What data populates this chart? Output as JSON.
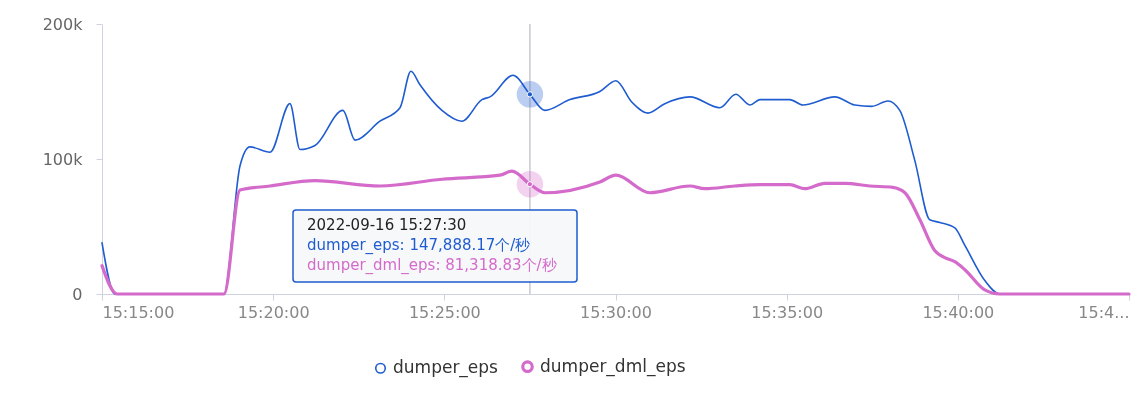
{
  "chart_data": {
    "type": "line",
    "xlim": [
      15.25,
      15.75
    ],
    "xticks": [
      {
        "value": 15.25,
        "label": "15:15:00"
      },
      {
        "value": 15.333333,
        "label": "15:20:00"
      },
      {
        "value": 15.416667,
        "label": "15:25:00"
      },
      {
        "value": 15.5,
        "label": "15:30:00"
      },
      {
        "value": 15.583333,
        "label": "15:35:00"
      },
      {
        "value": 15.666667,
        "label": "15:40:00"
      },
      {
        "value": 15.75,
        "label": "15:4..."
      }
    ],
    "ylim": [
      0,
      200000
    ],
    "yticks": [
      0,
      {
        "value": 100000,
        "label": "100k"
      },
      {
        "value": 200000,
        "label": "200k"
      }
    ],
    "legend": "bottom",
    "marker": "none",
    "series": [
      {
        "name": "dumper_eps",
        "color": "#1f5cd0",
        "x": [
          15.25,
          15.2563,
          15.3094,
          15.3172,
          15.322,
          15.3318,
          15.3415,
          15.3464,
          15.3537,
          15.3673,
          15.3732,
          15.3853,
          15.3951,
          15.4004,
          15.4048,
          15.4155,
          15.4252,
          15.435,
          15.4389,
          15.4501,
          15.458333,
          15.4656,
          15.4778,
          15.4924,
          15.5002,
          15.508,
          15.5158,
          15.524,
          15.5362,
          15.5508,
          15.5586,
          15.5654,
          15.5703,
          15.5849,
          15.5912,
          15.6068,
          15.6165,
          15.6248,
          15.6326,
          15.6384,
          15.6457,
          15.653,
          15.6579,
          15.6652,
          15.6701,
          15.6798,
          15.6871,
          15.75
        ],
        "values": [
          38000,
          0,
          0,
          95000,
          109000,
          105000,
          141000,
          107000,
          110000,
          136000,
          114000,
          128000,
          138000,
          165000,
          155000,
          136000,
          128000,
          144000,
          146000,
          162000,
          147888.17,
          136000,
          144000,
          150000,
          158000,
          142000,
          134000,
          141000,
          146000,
          138000,
          148000,
          140000,
          144000,
          144000,
          140000,
          146000,
          140000,
          139000,
          143000,
          136000,
          99000,
          55000,
          53000,
          49000,
          36000,
          10000,
          0,
          0
        ]
      },
      {
        "name": "dumper_dml_eps",
        "color": "#d46bcb",
        "x": [
          15.25,
          15.2573,
          15.3094,
          15.3172,
          15.3318,
          15.3537,
          15.3853,
          15.4155,
          15.4437,
          15.4496,
          15.458333,
          15.4656,
          15.4924,
          15.5002,
          15.5167,
          15.5362,
          15.5435,
          15.5581,
          15.5703,
          15.5849,
          15.5922,
          15.6019,
          15.6117,
          15.6238,
          15.635,
          15.6409,
          15.6482,
          15.6555,
          15.6603,
          15.6652,
          15.6701,
          15.6798,
          15.6871,
          15.75
        ],
        "values": [
          21000,
          0,
          0,
          77000,
          80000,
          84000,
          80000,
          85000,
          88000,
          91000,
          81318.83,
          75000,
          83000,
          88000,
          75000,
          80000,
          78000,
          80000,
          81000,
          81000,
          78000,
          82000,
          82000,
          80000,
          79000,
          75000,
          55000,
          32000,
          27000,
          24000,
          18000,
          3000,
          0,
          0
        ]
      }
    ],
    "ref_lines": [
      {
        "axis": "x",
        "value": 15.458333,
        "color": "#c8c8d0"
      }
    ],
    "annotations": [
      "2022-09-16 15:27:30",
      "dumper_eps: 147,888.17个/秒",
      "dumper_dml_eps: 81,318.83个/秒"
    ]
  }
}
